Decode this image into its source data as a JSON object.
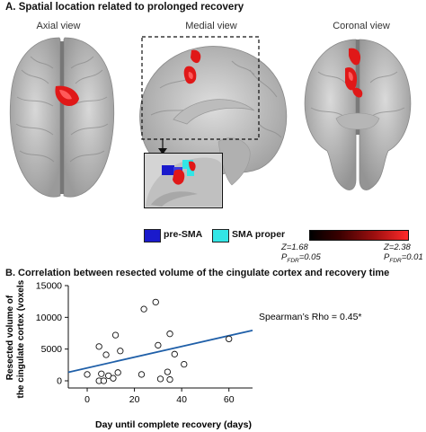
{
  "panel_a": {
    "title": "A. Spatial location related to prolonged recovery",
    "views": [
      "Axial view",
      "Medial view",
      "Coronal view"
    ],
    "legend": [
      {
        "label": "pre-SMA",
        "color": "#1a1acc"
      },
      {
        "label": "SMA proper",
        "color": "#33e6e6"
      }
    ],
    "colorbar": {
      "left_z": "Z=1.68",
      "left_p_main": "P",
      "left_p_sub": "FDR",
      "left_p_val": "=0.05",
      "right_z": "Z=2.38",
      "right_p_main": "P",
      "right_p_sub": "FDR",
      "right_p_val": "=0.01"
    },
    "colors": {
      "activation": "#e01818",
      "brain": "#c8c8c8"
    }
  },
  "panel_b": {
    "title": "B. Correlation between resected volume of the cingulate cortex and recovery time"
  },
  "chart_data": {
    "type": "scatter",
    "title": "",
    "xlabel": "Day until complete recovery (days)",
    "ylabel_lines": [
      "Resected volume of",
      "the cingulate cortex (voxels)"
    ],
    "xlim": [
      -8,
      70
    ],
    "ylim": [
      0,
      15000
    ],
    "xticks": [
      0,
      20,
      40,
      60
    ],
    "yticks": [
      0,
      5000,
      10000,
      15000
    ],
    "points": [
      {
        "x": 0,
        "y": 1000
      },
      {
        "x": 5,
        "y": 5400
      },
      {
        "x": 5,
        "y": 0
      },
      {
        "x": 6,
        "y": 1100
      },
      {
        "x": 7,
        "y": 0
      },
      {
        "x": 8,
        "y": 4100
      },
      {
        "x": 9,
        "y": 800
      },
      {
        "x": 11,
        "y": 400
      },
      {
        "x": 12,
        "y": 7200
      },
      {
        "x": 13,
        "y": 1300
      },
      {
        "x": 14,
        "y": 4700
      },
      {
        "x": 23,
        "y": 1000
      },
      {
        "x": 24,
        "y": 11300
      },
      {
        "x": 29,
        "y": 12400
      },
      {
        "x": 30,
        "y": 5600
      },
      {
        "x": 31,
        "y": 300
      },
      {
        "x": 34,
        "y": 1400
      },
      {
        "x": 35,
        "y": 7400
      },
      {
        "x": 35,
        "y": 200
      },
      {
        "x": 37,
        "y": 4200
      },
      {
        "x": 41,
        "y": 2600
      },
      {
        "x": 60,
        "y": 6600
      }
    ],
    "fit_line": {
      "x": [
        -8,
        70
      ],
      "y": [
        1350,
        7950
      ]
    },
    "annotation": "Spearman’s Rho = 0.45*",
    "colors": {
      "points": "#111111",
      "fit_line": "#1f5fa8"
    },
    "grid": false
  }
}
